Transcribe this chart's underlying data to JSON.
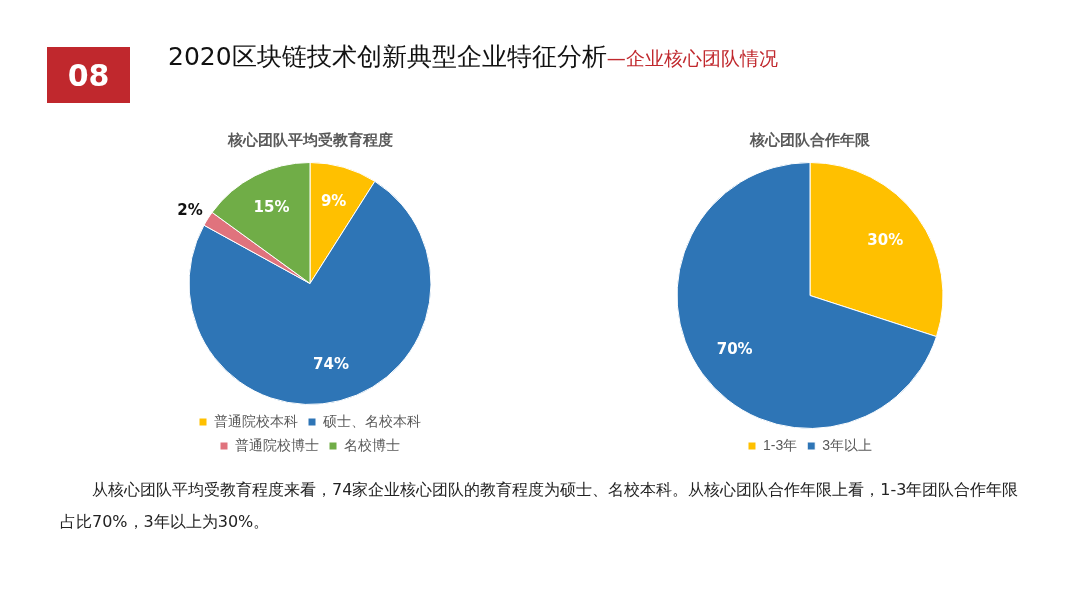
{
  "chart_data": [
    {
      "type": "other",
      "title": "2020区块链技术创新典型企业特征分析",
      "subtitle": "—企业核心团队情况",
      "annotations": [
        "08"
      ]
    },
    {
      "type": "pie",
      "title": "核心团队平均受教育程度",
      "categories": [
        "普通院校本科",
        "硕士、名校本科",
        "普通院校博士",
        "名校博士"
      ],
      "values": [
        9,
        74,
        2,
        15
      ],
      "colors": [
        "#ffc000",
        "#2e75b6",
        "#e0737d",
        "#70ad47"
      ],
      "value_labels": [
        "9%",
        "74%",
        "2%",
        "15%"
      ],
      "legend": "bottom"
    },
    {
      "type": "pie",
      "title": "核心团队合作年限",
      "categories": [
        "1-3年",
        "3年以上"
      ],
      "values": [
        30,
        70
      ],
      "colors": [
        "#ffc000",
        "#2e75b6"
      ],
      "value_labels": [
        "30%",
        "70%"
      ],
      "legend": "bottom",
      "annotations": [
        "从核心团队平均受教育程度来看，74家企业核心团队的教育程度为硕士、名校本科。从核心团队合作年限上看，1-3年团队合作年限占比70%，3年以上为30%。"
      ]
    }
  ]
}
